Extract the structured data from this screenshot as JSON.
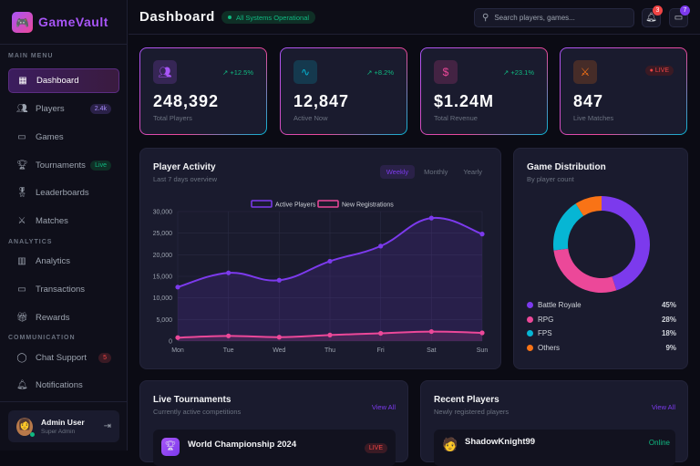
{
  "app": {
    "name": "GameVault",
    "logo_icon": "gamepad-icon"
  },
  "sidebar": {
    "sections": [
      "MAIN MENU",
      "ANALYTICS",
      "COMMUNICATION"
    ],
    "items": [
      {
        "label": "Dashboard",
        "icon": "grid-icon",
        "active": true
      },
      {
        "label": "Players",
        "icon": "users-icon",
        "badge": "2.4k"
      },
      {
        "label": "Games",
        "icon": "gamepad-icon"
      },
      {
        "label": "Tournaments",
        "icon": "trophy-icon",
        "badge": "Live"
      },
      {
        "label": "Leaderboards",
        "icon": "medal-icon"
      },
      {
        "label": "Matches",
        "icon": "swords-icon"
      },
      {
        "label": "Analytics",
        "icon": "bar-chart-icon"
      },
      {
        "label": "Transactions",
        "icon": "credit-card-icon"
      },
      {
        "label": "Rewards",
        "icon": "gift-icon"
      },
      {
        "label": "Chat Support",
        "icon": "chat-icon",
        "badge": "5"
      },
      {
        "label": "Notifications",
        "icon": "bell-icon"
      }
    ],
    "user": {
      "name": "Admin User",
      "role": "Super Admin"
    }
  },
  "header": {
    "title": "Dashboard",
    "status": "All Systems Operational",
    "search_placeholder": "Search players, games...",
    "notifications_count": "3",
    "messages_count": "7"
  },
  "stats": [
    {
      "value": "248,392",
      "label": "Total Players",
      "change": "+12.5%",
      "icon": "users-icon",
      "color": "#a855f7"
    },
    {
      "value": "12,847",
      "label": "Active Now",
      "change": "+8.2%",
      "icon": "activity-icon",
      "color": "#06b6d4"
    },
    {
      "value": "$1.24M",
      "label": "Total Revenue",
      "change": "+23.1%",
      "icon": "dollar-icon",
      "color": "#ec4899"
    },
    {
      "value": "847",
      "label": "Live Matches",
      "badge": "LIVE",
      "icon": "swords-icon",
      "color": "#f97316"
    }
  ],
  "activity": {
    "title": "Player Activity",
    "subtitle": "Last 7 days overview",
    "tabs": [
      "Weekly",
      "Monthly",
      "Yearly"
    ],
    "active_tab": "Weekly"
  },
  "chart_data": [
    {
      "type": "line",
      "categories": [
        "Mon",
        "Tue",
        "Wed",
        "Thu",
        "Fri",
        "Sat",
        "Sun"
      ],
      "series": [
        {
          "name": "Active Players",
          "color": "#7c3aed",
          "values": [
            12500,
            15800,
            14100,
            18500,
            22000,
            28500,
            24800
          ]
        },
        {
          "name": "New Registrations",
          "color": "#ec4899",
          "values": [
            800,
            1200,
            900,
            1400,
            1800,
            2200,
            1900
          ]
        }
      ],
      "ylim": [
        0,
        30000
      ],
      "yticks": [
        "0",
        "5,000",
        "10,000",
        "15,000",
        "20,000",
        "25,000",
        "30,000"
      ],
      "grid": true,
      "legend": "top"
    },
    {
      "type": "pie",
      "title": "Game Distribution",
      "subtitle": "By player count",
      "categories": [
        "Battle Royale",
        "RPG",
        "FPS",
        "Others"
      ],
      "values": [
        45,
        28,
        18,
        9
      ],
      "labels": [
        "45%",
        "28%",
        "18%",
        "9%"
      ],
      "colors": [
        "#7c3aed",
        "#ec4899",
        "#06b6d4",
        "#f97316"
      ]
    }
  ],
  "tournaments": {
    "title": "Live Tournaments",
    "subtitle": "Currently active competitions",
    "view_all": "View All",
    "items": [
      {
        "name": "World Championship 2024",
        "badge": "LIVE"
      }
    ]
  },
  "recent_players": {
    "title": "Recent Players",
    "subtitle": "Newly registered players",
    "view_all": "View All",
    "items": [
      {
        "name": "ShadowKnight99",
        "status": "Online"
      }
    ]
  }
}
